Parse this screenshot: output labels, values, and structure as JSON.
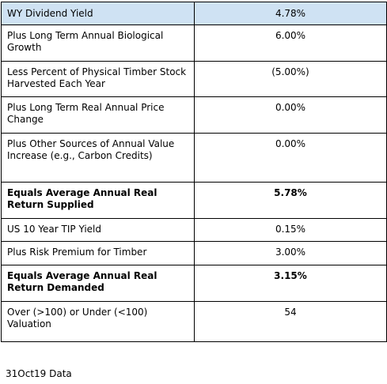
{
  "table": {
    "rows": [
      [
        "WY Dividend Yield",
        "4.78%"
      ],
      [
        "Plus Long Term Annual Biological Growth",
        "6.00%"
      ],
      [
        "Less Percent of Physical Timber Stock Harvested Each Year",
        "(5.00%)"
      ],
      [
        "Plus Long Term Real Annual Price Change",
        "0.00%"
      ],
      [
        "Plus Other Sources of Annual Value Increase (e.g., Carbon Credits)",
        "0.00%"
      ],
      [
        "Equals Average Annual Real Return Supplied",
        "5.78%"
      ],
      [
        "US 10 Year TIP Yield",
        "0.15%"
      ],
      [
        "Plus Risk Premium for Timber",
        "3.00%"
      ],
      [
        "Equals Average Annual Real Return Demanded",
        "3.15%"
      ],
      [
        "Over (>100) or Under (<100) Valuation",
        "54"
      ]
    ]
  },
  "footer": "31Oct19 Data"
}
